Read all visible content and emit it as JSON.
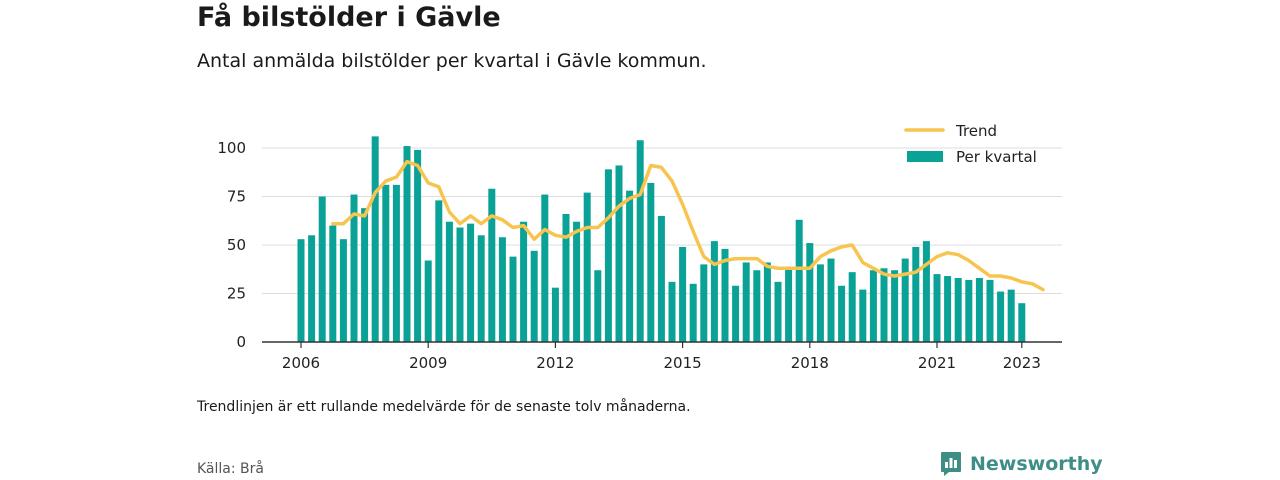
{
  "header": {
    "title": "Få bilstölder i Gävle",
    "subtitle": "Antal anmälda bilstölder per kvartal i Gävle kommun."
  },
  "footer": {
    "note": "Trendlinjen är ett rullande medelvärde för de senaste tolv månaderna.",
    "source": "Källa: Brå",
    "brand": "Newsworthy",
    "brand_icon": "newsworthy-logo-icon"
  },
  "colors": {
    "bars": "#0aa197",
    "trend": "#f7c54f",
    "grid": "#dddddd",
    "axis": "#333333",
    "brand": "#3e8e86"
  },
  "chart_data": {
    "type": "bar",
    "x_start": "2006 Q1",
    "x_ticks": [
      "2006",
      "2009",
      "2012",
      "2015",
      "2018",
      "2021",
      "2023"
    ],
    "y_ticks": [
      0,
      25,
      50,
      75,
      100
    ],
    "ylim": [
      0,
      110
    ],
    "grid": true,
    "legend_position": "top-right",
    "series": [
      {
        "name": "Per kvartal",
        "type": "bar",
        "values": [
          53,
          55,
          75,
          60,
          53,
          76,
          69,
          106,
          81,
          81,
          101,
          99,
          42,
          73,
          62,
          59,
          61,
          55,
          79,
          54,
          44,
          62,
          47,
          76,
          28,
          66,
          62,
          77,
          37,
          89,
          91,
          78,
          104,
          82,
          65,
          31,
          49,
          30,
          40,
          52,
          48,
          29,
          41,
          37,
          41,
          31,
          38,
          63,
          51,
          40,
          43,
          29,
          36,
          27,
          37,
          38,
          37,
          43,
          49,
          52,
          35,
          34,
          33,
          32,
          33,
          32,
          26,
          27,
          20
        ]
      },
      {
        "name": "Trend",
        "type": "line",
        "start_index": 3,
        "values": [
          61,
          61,
          66,
          65,
          77,
          83,
          85,
          93,
          91,
          82,
          80,
          67,
          61,
          65,
          61,
          65,
          63,
          59,
          60,
          53,
          58,
          55,
          54,
          57,
          59,
          59,
          64,
          70,
          74,
          76,
          91,
          90,
          83,
          71,
          57,
          44,
          40,
          42,
          43,
          43,
          43,
          39,
          38,
          38,
          38,
          38,
          44,
          47,
          49,
          50,
          41,
          38,
          35,
          34,
          35,
          36,
          40,
          44,
          46,
          45,
          42,
          38,
          34,
          34,
          33,
          31,
          30,
          27
        ]
      }
    ]
  }
}
